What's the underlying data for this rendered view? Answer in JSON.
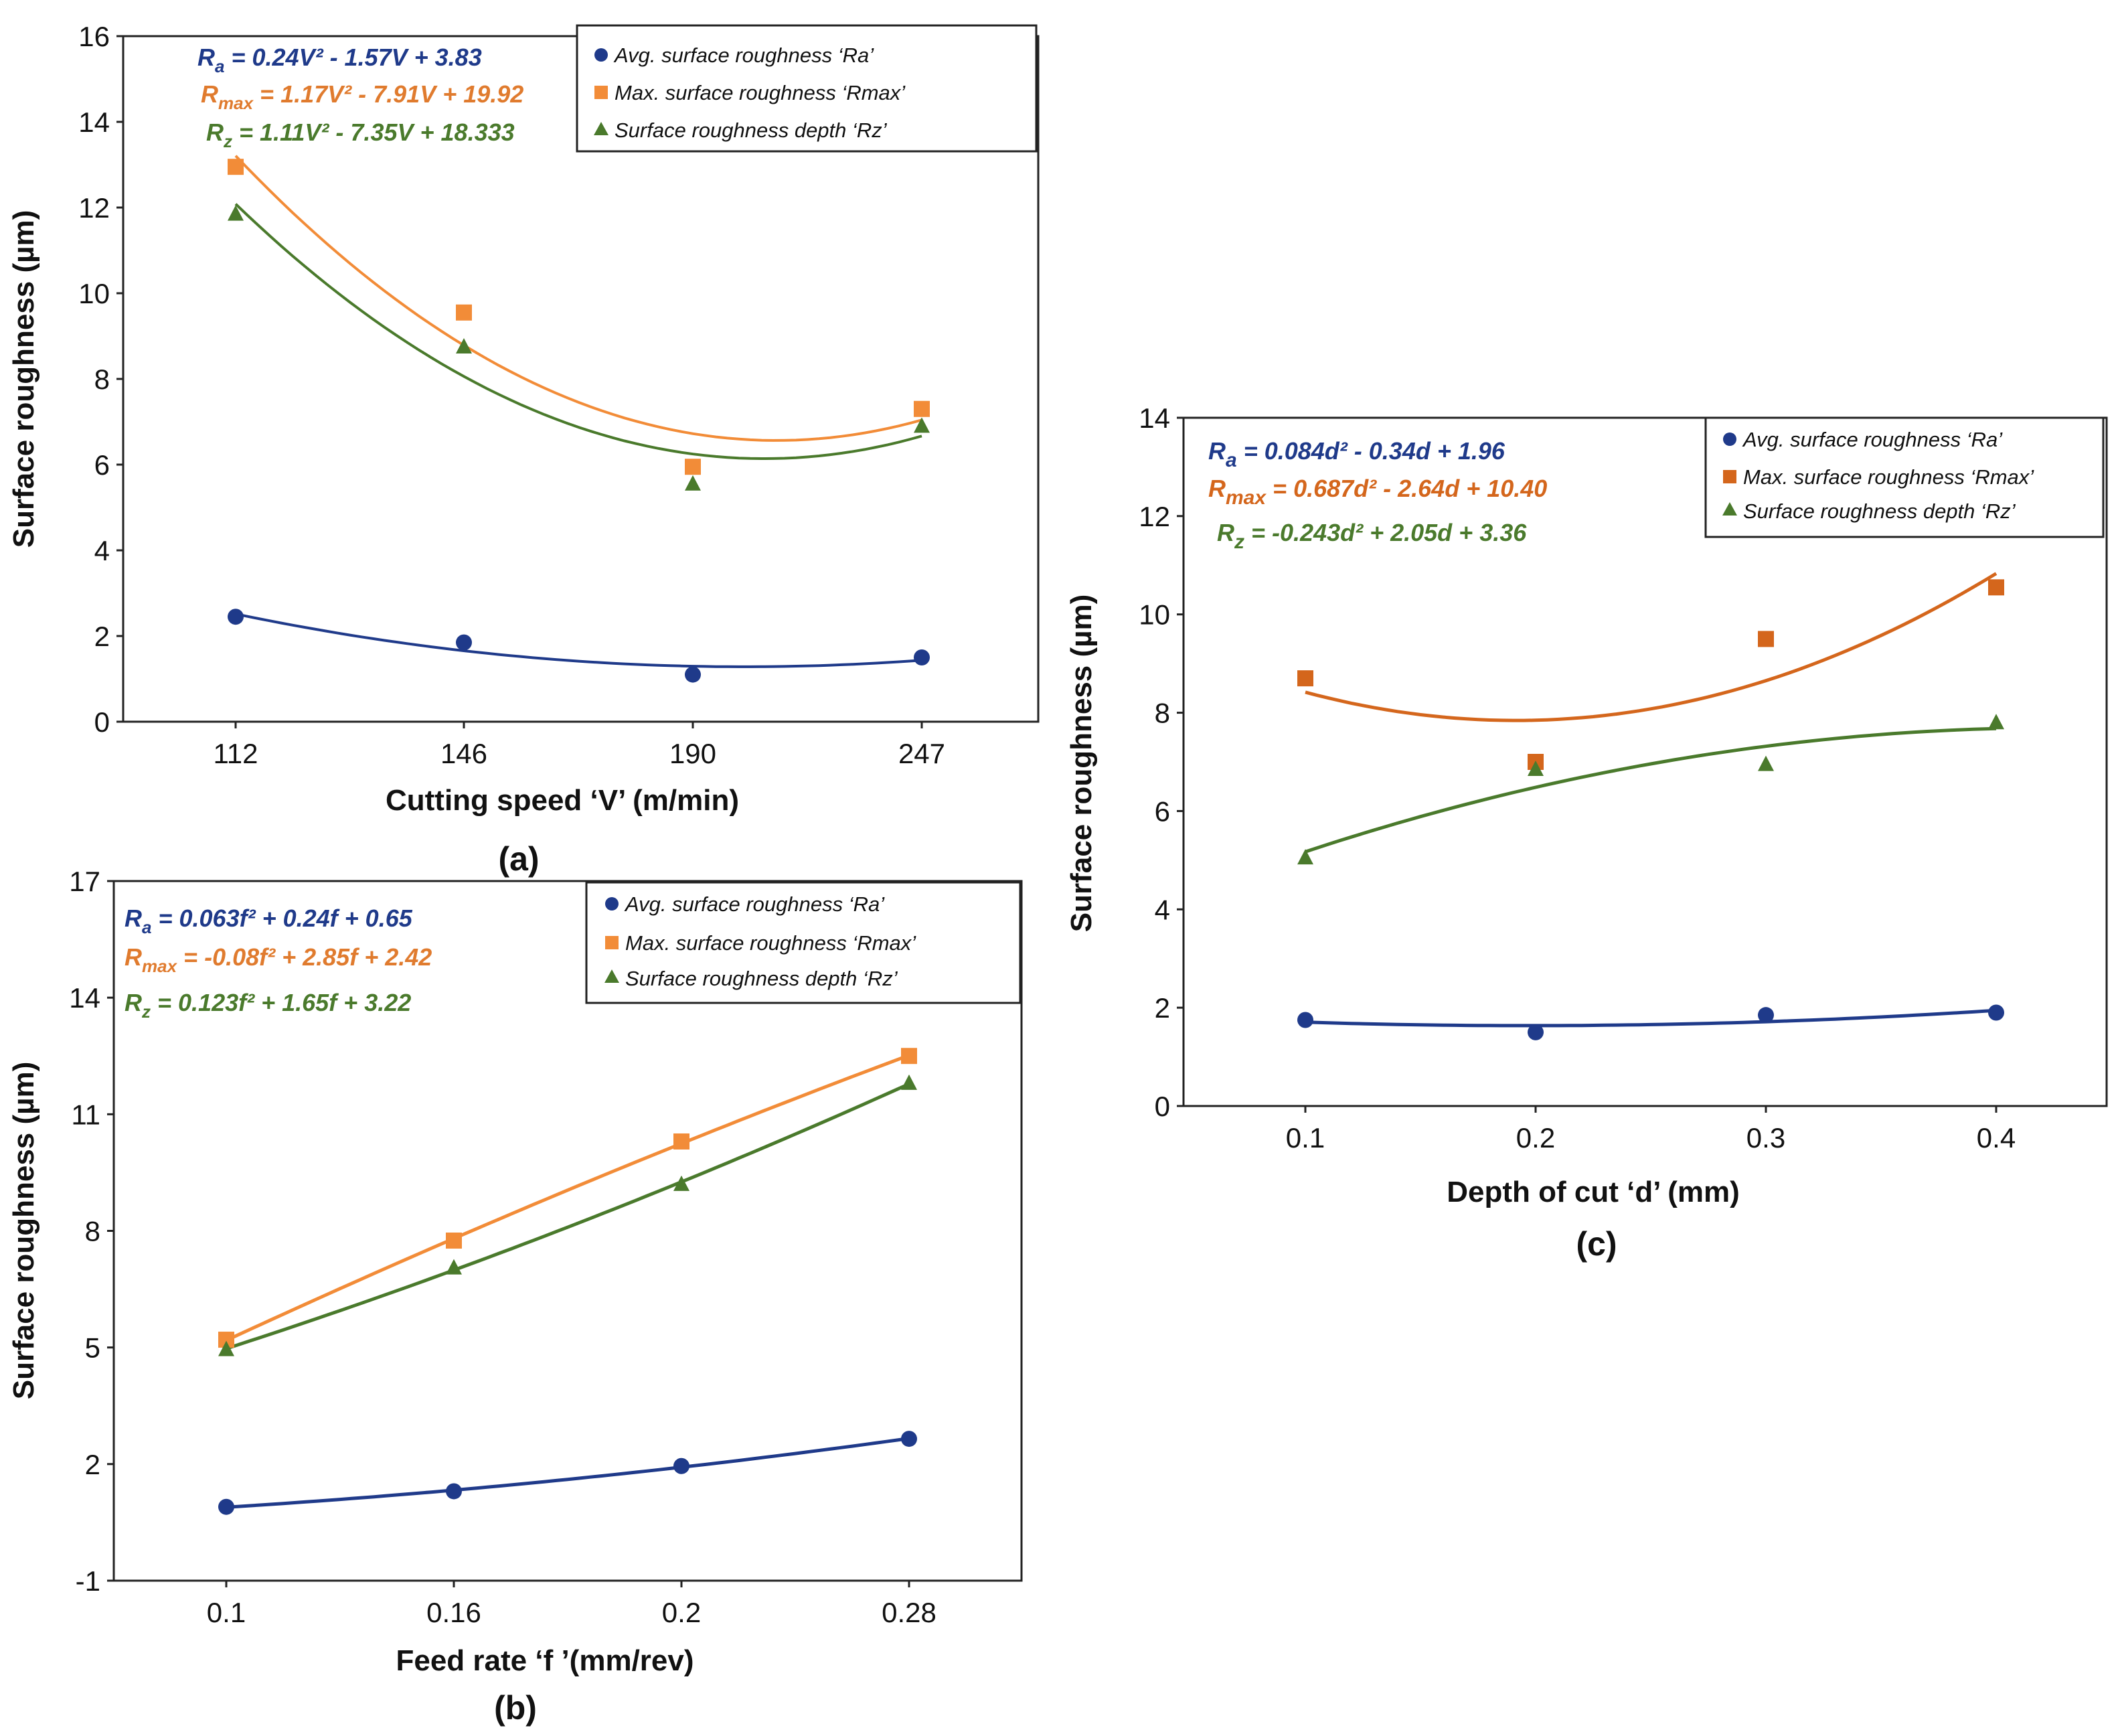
{
  "chart_data": [
    {
      "id": "a",
      "type": "scatter",
      "panel_label": "(a)",
      "xlabel": "Cutting speed ‘V’ (m/min)",
      "ylabel": "Surface roughness (µm)",
      "categories": [
        "112",
        "146",
        "190",
        "247"
      ],
      "ylim": [
        0,
        16
      ],
      "yticks": [
        0,
        2,
        4,
        6,
        8,
        10,
        12,
        14,
        16
      ],
      "legend_position": "top-right",
      "series": [
        {
          "name": "Avg. surface roughness ‘Ra’",
          "marker": "circle",
          "color": "#1f3a8a",
          "values": [
            2.45,
            1.85,
            1.1,
            1.5
          ]
        },
        {
          "name": "Max. surface roughness ‘Rmax’",
          "marker": "square",
          "color": "#f28c38",
          "values": [
            12.95,
            9.55,
            5.95,
            7.3
          ]
        },
        {
          "name": "Surface roughness depth ‘Rz’",
          "marker": "triangle",
          "color": "#4a7a2c",
          "values": [
            11.85,
            8.75,
            5.55,
            6.9
          ]
        }
      ],
      "equations": [
        {
          "lhs": "R",
          "sub": "a",
          "rhs": " = 0.24V² - 1.57V + 3.83",
          "color": "#1f3a8a"
        },
        {
          "lhs": "R",
          "sub": "max",
          "rhs": " = 1.17V² - 7.91V + 19.92",
          "color": "#e07b2e"
        },
        {
          "lhs": "R",
          "sub": "z",
          "rhs": " = 1.11V² - 7.35V + 18.333",
          "color": "#4a7a2c"
        }
      ]
    },
    {
      "id": "b",
      "type": "scatter",
      "panel_label": "(b)",
      "xlabel": "Feed rate ‘f ’(mm/rev)",
      "ylabel": "Surface roughness (µm)",
      "categories": [
        "0.1",
        "0.16",
        "0.2",
        "0.28"
      ],
      "ylim": [
        -1,
        17
      ],
      "yticks": [
        -1,
        2,
        5,
        8,
        11,
        14,
        17
      ],
      "legend_position": "top-right",
      "series": [
        {
          "name": "Avg. surface roughness ‘Ra’",
          "marker": "circle",
          "color": "#1f3a8a",
          "values": [
            0.9,
            1.3,
            1.95,
            2.65
          ]
        },
        {
          "name": "Max. surface roughness ‘Rmax’",
          "marker": "square",
          "color": "#f28c38",
          "values": [
            5.2,
            7.75,
            10.3,
            12.5
          ]
        },
        {
          "name": "Surface roughness depth ‘Rz’",
          "marker": "triangle",
          "color": "#4a7a2c",
          "values": [
            4.95,
            7.05,
            9.2,
            11.8
          ]
        }
      ],
      "equations": [
        {
          "lhs": "R",
          "sub": "a",
          "rhs": " = 0.063f² + 0.24f + 0.65",
          "color": "#1f3a8a"
        },
        {
          "lhs": "R",
          "sub": "max",
          "rhs": " = -0.08f² + 2.85f + 2.42",
          "color": "#e07b2e"
        },
        {
          "lhs": "R",
          "sub": "z",
          "rhs": " = 0.123f² + 1.65f + 3.22",
          "color": "#4a7a2c"
        }
      ]
    },
    {
      "id": "c",
      "type": "scatter",
      "panel_label": "(c)",
      "xlabel": "Depth of cut ‘d’ (mm)",
      "ylabel": "Surface roughness (µm)",
      "categories": [
        "0.1",
        "0.2",
        "0.3",
        "0.4"
      ],
      "ylim": [
        0,
        14
      ],
      "yticks": [
        0,
        2,
        4,
        6,
        8,
        10,
        12,
        14
      ],
      "legend_position": "top-right",
      "series": [
        {
          "name": "Avg. surface roughness ‘Ra’",
          "marker": "circle",
          "color": "#1f3a8a",
          "values": [
            1.75,
            1.5,
            1.85,
            1.9
          ]
        },
        {
          "name": "Max. surface roughness ‘Rmax’",
          "marker": "square",
          "color": "#d4661c",
          "values": [
            8.7,
            7.0,
            9.5,
            10.55
          ]
        },
        {
          "name": "Surface roughness depth ‘Rz’",
          "marker": "triangle",
          "color": "#4a7a2c",
          "values": [
            5.05,
            6.85,
            6.95,
            7.8
          ]
        }
      ],
      "equations": [
        {
          "lhs": "R",
          "sub": "a",
          "rhs": " = 0.084d² - 0.34d + 1.96",
          "color": "#1f3a8a"
        },
        {
          "lhs": "R",
          "sub": "max",
          "rhs": " = 0.687d² - 2.64d + 10.40",
          "color": "#d4661c"
        },
        {
          "lhs": "R",
          "sub": "z",
          "rhs": " = -0.243d² + 2.05d + 3.36",
          "color": "#4a7a2c"
        }
      ]
    }
  ]
}
